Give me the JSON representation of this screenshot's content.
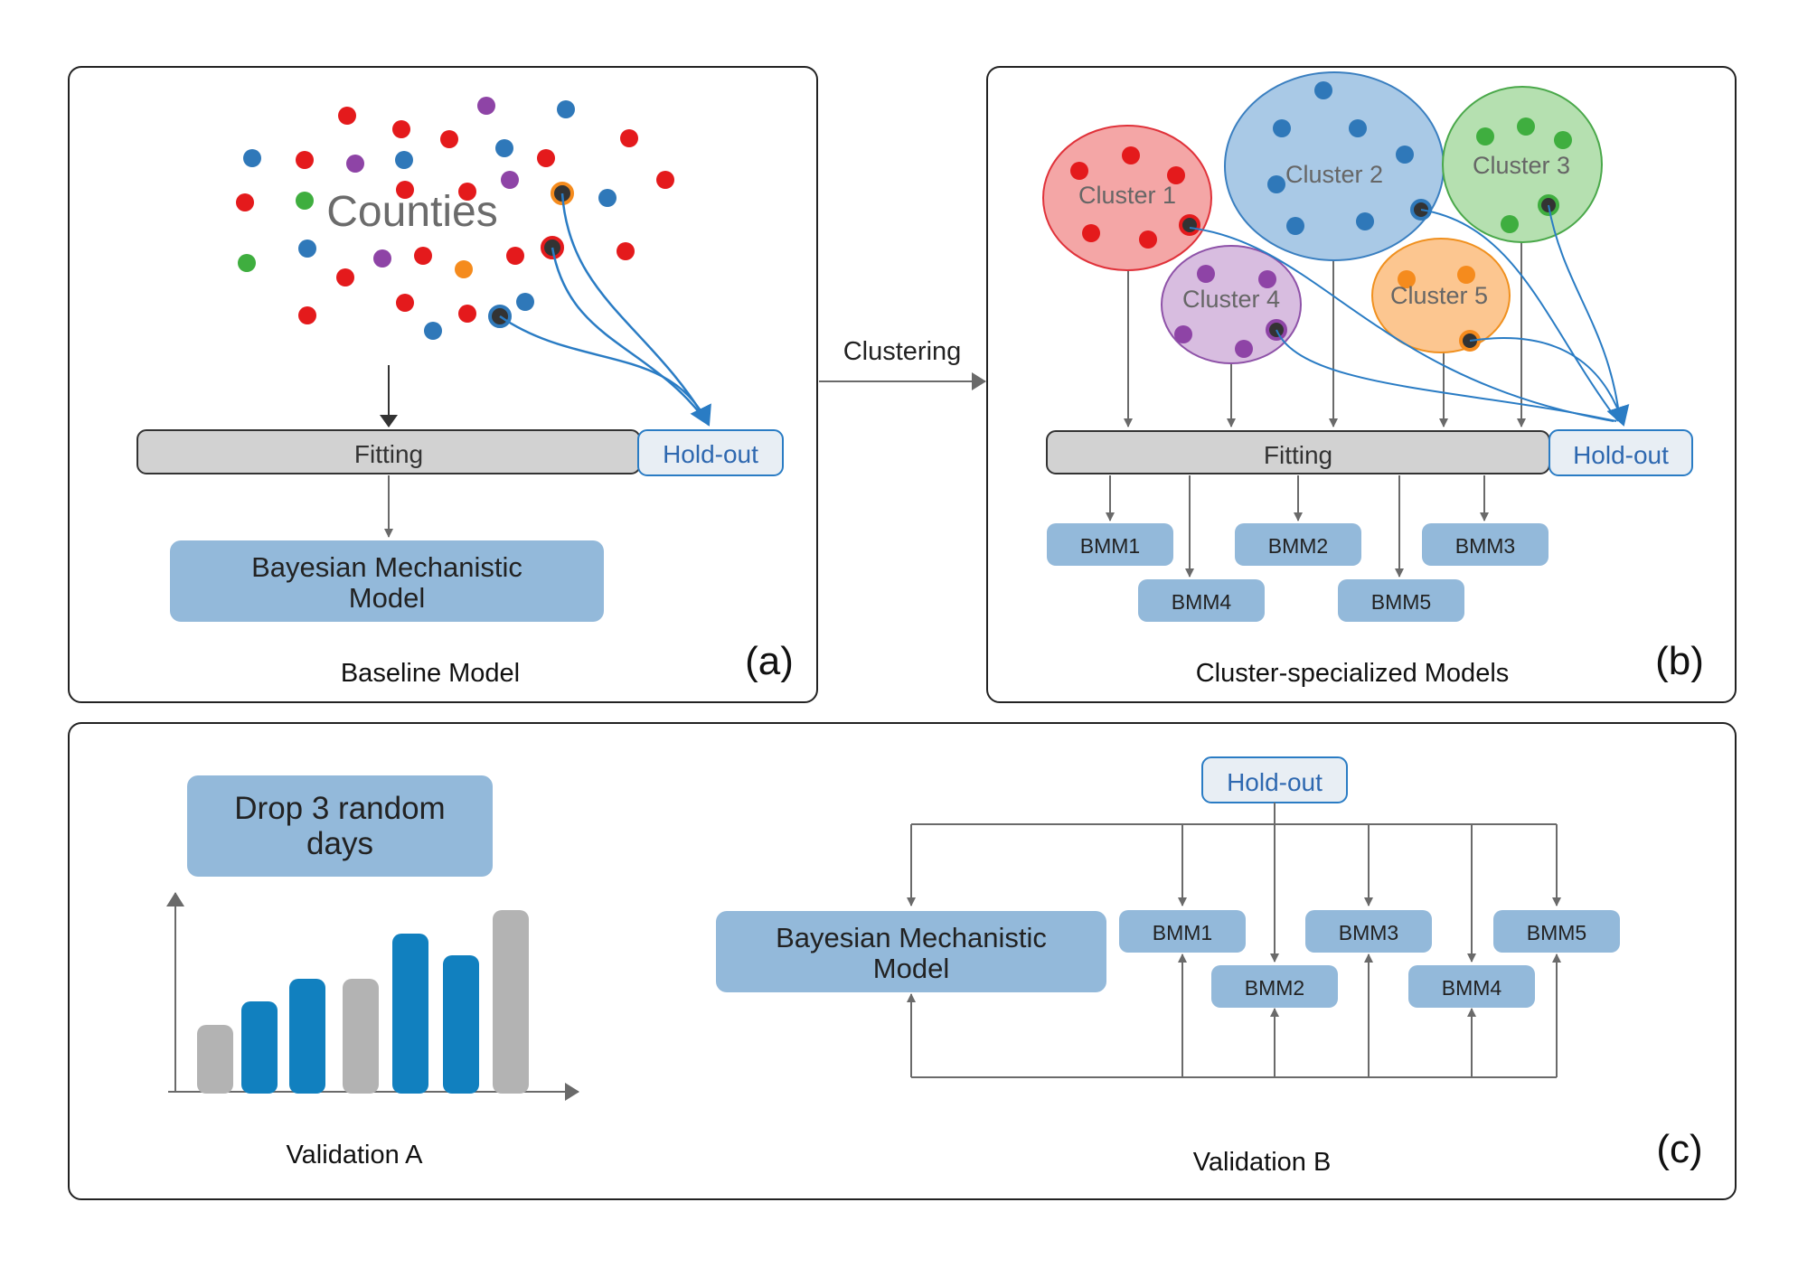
{
  "panel_a": {
    "counties_label": "Counties",
    "fitting_label": "Fitting",
    "holdout_label": "Hold-out",
    "model_label_line1": "Bayesian Mechanistic",
    "model_label_line2": "Model",
    "caption": "Baseline Model",
    "letter": "(a)"
  },
  "clustering_label": "Clustering",
  "panel_b": {
    "clusters": [
      {
        "label": "Cluster 1",
        "color": "#f4a6a6",
        "stroke": "#e0323a",
        "dot": "#e41a1c"
      },
      {
        "label": "Cluster 2",
        "color": "#a9c9e6",
        "stroke": "#3a7fc0",
        "dot": "#2f78b9"
      },
      {
        "label": "Cluster 3",
        "color": "#b5e0b0",
        "stroke": "#4aa84a",
        "dot": "#3fae3f"
      },
      {
        "label": "Cluster 4",
        "color": "#d8bde0",
        "stroke": "#8e52a8",
        "dot": "#8e44a6"
      },
      {
        "label": "Cluster 5",
        "color": "#fcc690",
        "stroke": "#f0901e",
        "dot": "#f58b1d"
      }
    ],
    "fitting_label": "Fitting",
    "holdout_label": "Hold-out",
    "bmms": [
      "BMM1",
      "BMM2",
      "BMM3",
      "BMM4",
      "BMM5"
    ],
    "caption": "Cluster-specialized Models",
    "letter": "(b)"
  },
  "panel_c": {
    "drop_label_line1": "Drop 3 random",
    "drop_label_line2": "days",
    "caption_a": "Validation A",
    "holdout_label": "Hold-out",
    "model_label_line1": "Bayesian Mechanistic",
    "model_label_line2": "Model",
    "bmms": [
      "BMM1",
      "BMM2",
      "BMM3",
      "BMM4",
      "BMM5"
    ],
    "caption_b": "Validation B",
    "letter": "(c)"
  },
  "colors": {
    "box_blue": "#93b9da",
    "fitting_gray": "#d2d2d2",
    "holdout_fill": "#e8eef4",
    "holdout_text": "#2e68b0",
    "bar_blue": "#1180bf",
    "bar_gray": "#b3b3b3",
    "arrow_gray": "#6a6a6a",
    "curve_blue": "#2a7cc4"
  }
}
